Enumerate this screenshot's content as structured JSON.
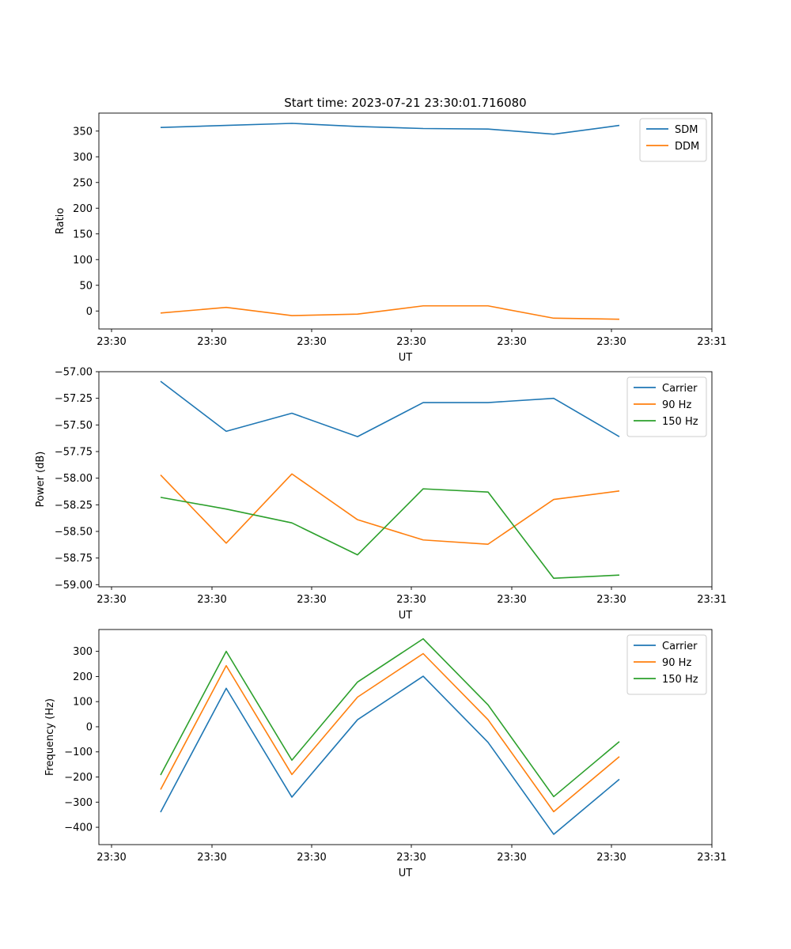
{
  "chart_data": [
    {
      "type": "line",
      "title": "Start time: 2023-07-21 23:30:01.716080",
      "xlabel": "UT",
      "ylabel": "Ratio",
      "x_tick_labels": [
        "23:30",
        "23:30",
        "23:30",
        "23:30",
        "23:30",
        "23:30",
        "23:30"
      ],
      "y_tick_labels": [
        "0",
        "50",
        "100",
        "150",
        "200",
        "250",
        "300",
        "350"
      ],
      "y_ticks": [
        0,
        50,
        100,
        150,
        200,
        250,
        300,
        350
      ],
      "ylim": [
        -35,
        385
      ],
      "legend": "top-right",
      "series": [
        {
          "name": "SDM",
          "color": "#1f77b4",
          "values": [
            357,
            361,
            365,
            359,
            355,
            354,
            344,
            361
          ]
        },
        {
          "name": "DDM",
          "color": "#ff7f0e",
          "values": [
            -4,
            7,
            -9,
            -6,
            10,
            10,
            -14,
            -16
          ]
        }
      ]
    },
    {
      "type": "line",
      "title": "",
      "xlabel": "UT",
      "ylabel": "Power (dB)",
      "x_tick_labels": [
        "23:30",
        "23:30",
        "23:30",
        "23:30",
        "23:30",
        "23:30",
        "23:30"
      ],
      "y_tick_labels": [
        "−59.00",
        "−58.75",
        "−58.50",
        "−58.25",
        "−58.00",
        "−57.75",
        "−57.50",
        "−57.25",
        "−57.00"
      ],
      "y_ticks": [
        -59.0,
        -58.75,
        -58.5,
        -58.25,
        -58.0,
        -57.75,
        -57.5,
        -57.25,
        -57.0
      ],
      "ylim": [
        -59.02,
        -57.0
      ],
      "legend": "top-right",
      "series": [
        {
          "name": "Carrier",
          "color": "#1f77b4",
          "values": [
            -57.09,
            -57.56,
            -57.39,
            -57.61,
            -57.29,
            -57.29,
            -57.25,
            -57.61
          ]
        },
        {
          "name": "90 Hz",
          "color": "#ff7f0e",
          "values": [
            -57.97,
            -58.61,
            -57.96,
            -58.39,
            -58.58,
            -58.62,
            -58.2,
            -58.12
          ]
        },
        {
          "name": "150 Hz",
          "color": "#2ca02c",
          "values": [
            -58.18,
            -58.29,
            -58.42,
            -58.72,
            -58.1,
            -58.13,
            -58.94,
            -58.91
          ]
        }
      ]
    },
    {
      "type": "line",
      "title": "",
      "xlabel": "UT",
      "ylabel": "Frequency (Hz)",
      "x_tick_labels": [
        "23:30",
        "23:30",
        "23:30",
        "23:30",
        "23:30",
        "23:30",
        "23:30"
      ],
      "y_tick_labels": [
        "−400",
        "−300",
        "−200",
        "−100",
        "0",
        "100",
        "200",
        "300"
      ],
      "y_ticks": [
        -400,
        -300,
        -200,
        -100,
        0,
        100,
        200,
        300
      ],
      "ylim": [
        -469,
        387
      ],
      "legend": "top-right",
      "series": [
        {
          "name": "Carrier",
          "color": "#1f77b4",
          "values": [
            -340,
            153,
            -280,
            28,
            201,
            -62,
            -428,
            -209
          ]
        },
        {
          "name": "90 Hz",
          "color": "#ff7f0e",
          "values": [
            -250,
            243,
            -190,
            118,
            291,
            28,
            -338,
            -119
          ]
        },
        {
          "name": "150 Hz",
          "color": "#2ca02c",
          "values": [
            -192,
            300,
            -133,
            178,
            350,
            87,
            -278,
            -59
          ]
        }
      ]
    }
  ],
  "x_tick_labels_right": "23:31"
}
